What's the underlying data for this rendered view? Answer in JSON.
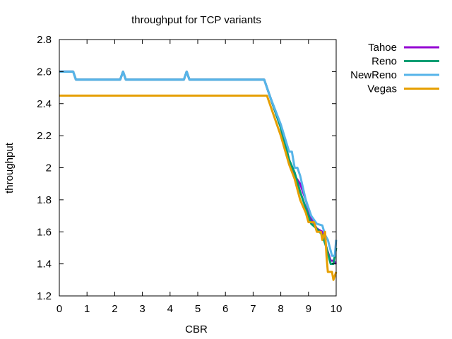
{
  "chart_data": {
    "type": "line",
    "title": "throughput for TCP variants",
    "xlabel": "CBR",
    "ylabel": "throughput",
    "xlim": [
      0,
      10
    ],
    "ylim": [
      1.2,
      2.8
    ],
    "xticks": [
      0,
      1,
      2,
      3,
      4,
      5,
      6,
      7,
      8,
      9,
      10
    ],
    "yticks": [
      1.2,
      1.4,
      1.6,
      1.8,
      2,
      2.2,
      2.4,
      2.6,
      2.8
    ],
    "grid": false,
    "legend_position": "outside top-right",
    "series": [
      {
        "name": "Tahoe",
        "color": "#9400d3",
        "points": [
          [
            0,
            2.6
          ],
          [
            0.5,
            2.6
          ],
          [
            0.6,
            2.55
          ],
          [
            2.2,
            2.55
          ],
          [
            2.3,
            2.6
          ],
          [
            2.4,
            2.55
          ],
          [
            4.5,
            2.55
          ],
          [
            4.6,
            2.6
          ],
          [
            4.7,
            2.55
          ],
          [
            7.4,
            2.55
          ],
          [
            7.6,
            2.45
          ],
          [
            8.0,
            2.25
          ],
          [
            8.3,
            2.05
          ],
          [
            8.5,
            1.95
          ],
          [
            8.7,
            1.9
          ],
          [
            8.9,
            1.8
          ],
          [
            9.1,
            1.68
          ],
          [
            9.3,
            1.62
          ],
          [
            9.5,
            1.6
          ],
          [
            9.65,
            1.5
          ],
          [
            9.8,
            1.42
          ],
          [
            9.9,
            1.42
          ],
          [
            10,
            1.4
          ]
        ]
      },
      {
        "name": "Reno",
        "color": "#009e73",
        "points": [
          [
            0,
            2.6
          ],
          [
            0.5,
            2.6
          ],
          [
            0.6,
            2.55
          ],
          [
            2.2,
            2.55
          ],
          [
            2.3,
            2.6
          ],
          [
            2.4,
            2.55
          ],
          [
            4.5,
            2.55
          ],
          [
            4.6,
            2.6
          ],
          [
            4.7,
            2.55
          ],
          [
            7.4,
            2.55
          ],
          [
            7.6,
            2.45
          ],
          [
            8.0,
            2.25
          ],
          [
            8.3,
            2.05
          ],
          [
            8.5,
            1.97
          ],
          [
            8.7,
            1.85
          ],
          [
            8.9,
            1.75
          ],
          [
            9.1,
            1.65
          ],
          [
            9.3,
            1.62
          ],
          [
            9.5,
            1.58
          ],
          [
            9.65,
            1.5
          ],
          [
            9.8,
            1.4
          ],
          [
            9.9,
            1.4
          ],
          [
            10,
            1.5
          ]
        ]
      },
      {
        "name": "NewReno",
        "color": "#56b4e9",
        "points": [
          [
            0,
            2.6
          ],
          [
            0.5,
            2.6
          ],
          [
            0.6,
            2.55
          ],
          [
            2.2,
            2.55
          ],
          [
            2.3,
            2.6
          ],
          [
            2.4,
            2.55
          ],
          [
            4.5,
            2.55
          ],
          [
            4.6,
            2.6
          ],
          [
            4.7,
            2.55
          ],
          [
            7.4,
            2.55
          ],
          [
            7.6,
            2.45
          ],
          [
            8.0,
            2.27
          ],
          [
            8.3,
            2.1
          ],
          [
            8.4,
            2.1
          ],
          [
            8.5,
            2.0
          ],
          [
            8.6,
            2.0
          ],
          [
            8.7,
            1.95
          ],
          [
            8.9,
            1.8
          ],
          [
            9.1,
            1.7
          ],
          [
            9.3,
            1.65
          ],
          [
            9.5,
            1.64
          ],
          [
            9.6,
            1.58
          ],
          [
            9.7,
            1.55
          ],
          [
            9.85,
            1.45
          ],
          [
            9.95,
            1.45
          ],
          [
            10,
            1.55
          ]
        ]
      },
      {
        "name": "Vegas",
        "color": "#e69f00",
        "points": [
          [
            0,
            2.45
          ],
          [
            7.5,
            2.45
          ],
          [
            7.7,
            2.35
          ],
          [
            8.0,
            2.2
          ],
          [
            8.3,
            2.02
          ],
          [
            8.5,
            1.93
          ],
          [
            8.7,
            1.8
          ],
          [
            8.9,
            1.72
          ],
          [
            9.0,
            1.66
          ],
          [
            9.2,
            1.66
          ],
          [
            9.3,
            1.6
          ],
          [
            9.45,
            1.6
          ],
          [
            9.5,
            1.55
          ],
          [
            9.6,
            1.6
          ],
          [
            9.65,
            1.45
          ],
          [
            9.7,
            1.35
          ],
          [
            9.85,
            1.35
          ],
          [
            9.9,
            1.3
          ],
          [
            10,
            1.35
          ]
        ]
      }
    ]
  }
}
